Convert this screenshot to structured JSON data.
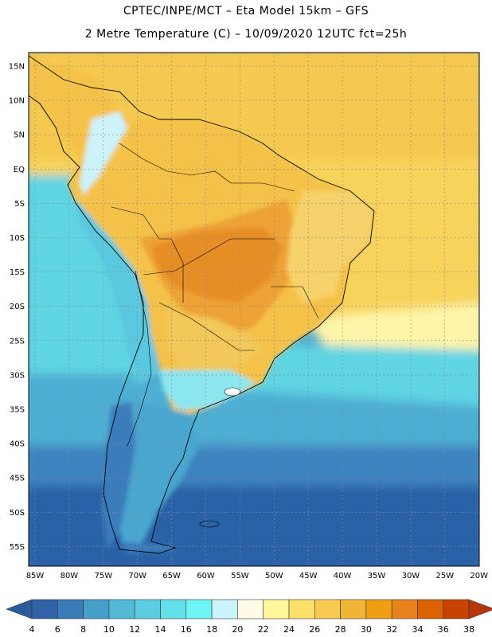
{
  "header": {
    "title_line1": "CPTEC/INPE/MCT –  Eta Model 15km – GFS",
    "title_line2": "2 Metre Temperature (C) – 10/09/2020 12UTC fct=25h"
  },
  "axes": {
    "lat_labels": [
      "15N",
      "10N",
      "5N",
      "EQ",
      "5S",
      "10S",
      "15S",
      "20S",
      "25S",
      "30S",
      "35S",
      "40S",
      "45S",
      "50S",
      "55S"
    ],
    "lon_labels": [
      "85W",
      "80W",
      "75W",
      "70W",
      "65W",
      "60W",
      "55W",
      "50W",
      "45W",
      "40W",
      "35W",
      "30W",
      "25W",
      "20W"
    ]
  },
  "colorbar": {
    "labels": [
      "4",
      "6",
      "8",
      "10",
      "12",
      "14",
      "16",
      "18",
      "20",
      "22",
      "24",
      "26",
      "28",
      "30",
      "32",
      "34",
      "36",
      "38"
    ],
    "colors": [
      "#2f62a6",
      "#3a7cb8",
      "#44a0c9",
      "#52b8d4",
      "#5ccde0",
      "#63e0ea",
      "#6ff5f6",
      "#c9f5fb",
      "#fffbe7",
      "#fff59a",
      "#fde06a",
      "#f9ca52",
      "#f0b536",
      "#ef9f12",
      "#e8821b",
      "#dc6100",
      "#c84300"
    ],
    "end_low_color": "#2a5b9c",
    "end_high_color": "#b5360a"
  },
  "map": {
    "ocean_colors": {
      "deep_south": "#2c62a8",
      "south": "#3e83bf",
      "mid_south": "#4eaed3",
      "subtropic": "#5fd4e3",
      "atlantic_warm": "#fff5a8",
      "tropic": "#f8d35b",
      "north": "#f5c94f"
    },
    "land_colors": {
      "andes_south": "#3a7cbb",
      "andes_cold": "#5ac8df",
      "patagonia": "#4aa6cf",
      "pampas": "#8be6ef",
      "argentina_north": "#f2c85a",
      "amazon": "#f5c24a",
      "center_hot": "#e68e25",
      "center_warm": "#eea235",
      "northeast": "#f6d26c",
      "andes_snow": "#cdf3fa"
    }
  }
}
